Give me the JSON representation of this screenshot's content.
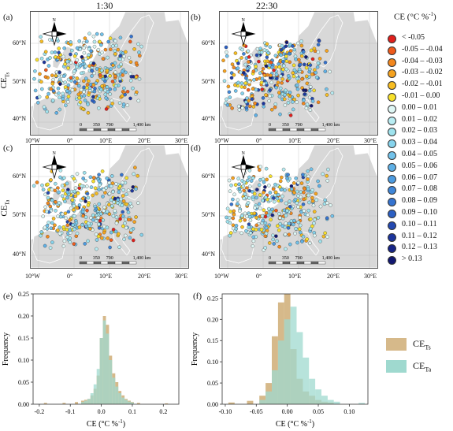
{
  "columns": {
    "left": "1:30",
    "right": "22:30"
  },
  "row_labels": {
    "ts": "CE",
    "ts_sub": "Ts",
    "ta": "CE",
    "ta_sub": "Ta"
  },
  "panel_letters": [
    "(a)",
    "(b)",
    "(c)",
    "(d)",
    "(e)",
    "(f)"
  ],
  "map_axes": {
    "lat_ticks": [
      "60°N",
      "50°N",
      "40°N"
    ],
    "lon_ticks": [
      "10°W",
      "0°",
      "10°E",
      "20°E",
      "30°E"
    ]
  },
  "compass_label": "N",
  "scalebar": {
    "labels": [
      "0",
      "350",
      "700",
      "1,400 km"
    ]
  },
  "legend": {
    "title": "CE (°C %",
    "title_sup": "-1",
    "title_end": ")",
    "items": [
      {
        "label": "< -0.05",
        "color": "#e0201d"
      },
      {
        "label": "-0.05 – -0.04",
        "color": "#ee5a1c"
      },
      {
        "label": "-0.04 – -0.03",
        "color": "#f2871e"
      },
      {
        "label": "-0.03 – -0.02",
        "color": "#f5a21f"
      },
      {
        "label": "-0.02 – -0.01",
        "color": "#f7bd22"
      },
      {
        "label": "-0.01 – 0.00",
        "color": "#f7e02a"
      },
      {
        "label": "0.00 – 0.01",
        "color": "#dff7f5"
      },
      {
        "label": "0.01 – 0.02",
        "color": "#b9edf3"
      },
      {
        "label": "0.02 – 0.03",
        "color": "#9fe3ee"
      },
      {
        "label": "0.03 – 0.04",
        "color": "#86d3ec"
      },
      {
        "label": "0.04 – 0.05",
        "color": "#72c2ea"
      },
      {
        "label": "0.05 – 0.06",
        "color": "#5eb0e6"
      },
      {
        "label": "0.06 – 0.07",
        "color": "#4c9be0"
      },
      {
        "label": "0.07 – 0.08",
        "color": "#3f86d8"
      },
      {
        "label": "0.08 – 0.09",
        "color": "#3573cf"
      },
      {
        "label": "0.09 – 0.10",
        "color": "#2c5fc2"
      },
      {
        "label": "0.10 – 0.11",
        "color": "#2449b0"
      },
      {
        "label": "0.11 – 0.12",
        "color": "#1d359c"
      },
      {
        "label": "0.12 – 0.13",
        "color": "#172587"
      },
      {
        "label": "> 0.13",
        "color": "#121871"
      }
    ]
  },
  "histogram_legend": [
    {
      "label": "CE",
      "sub": "Ts",
      "color": "#d6b98a"
    },
    {
      "label": "CE",
      "sub": "Ta",
      "color": "#9fd9cf"
    }
  ],
  "chart_data": [
    {
      "type": "bar",
      "panel": "(e)",
      "xlabel": "CE (°C %",
      "xlabel_sup": "-1",
      "xlabel_end": ")",
      "ylabel": "Frequency",
      "xlim": [
        -0.22,
        0.25
      ],
      "ylim": [
        0,
        0.25
      ],
      "xticks": [
        "-0.2",
        "-0.1",
        "0.0",
        "0.1",
        "0.2"
      ],
      "xtick_values": [
        -0.2,
        -0.1,
        0.0,
        0.1,
        0.2
      ],
      "yticks": [
        "0.00",
        "0.05",
        "0.10",
        "0.15",
        "0.20",
        "0.25"
      ],
      "ytick_values": [
        0.0,
        0.05,
        0.1,
        0.15,
        0.2,
        0.25
      ],
      "bin_width": 0.01,
      "series": [
        {
          "name": "CE Ts",
          "color": "#d6b98a",
          "x": [
            -0.18,
            -0.12,
            -0.08,
            -0.06,
            -0.05,
            -0.04,
            -0.03,
            -0.02,
            -0.01,
            0.0,
            0.01,
            0.02,
            0.03,
            0.04,
            0.05,
            0.06,
            0.07,
            0.08,
            0.09,
            0.1,
            0.12,
            0.21
          ],
          "values": [
            0.003,
            0.003,
            0.005,
            0.008,
            0.01,
            0.012,
            0.02,
            0.035,
            0.065,
            0.15,
            0.2,
            0.18,
            0.11,
            0.07,
            0.05,
            0.03,
            0.02,
            0.012,
            0.008,
            0.005,
            0.003,
            0.002
          ]
        },
        {
          "name": "CE Ta",
          "color": "#9fd9cf",
          "x": [
            -0.06,
            -0.05,
            -0.04,
            -0.03,
            -0.02,
            -0.01,
            0.0,
            0.01,
            0.02,
            0.03,
            0.04,
            0.05,
            0.06,
            0.07,
            0.08,
            0.09,
            0.1
          ],
          "values": [
            0.005,
            0.008,
            0.012,
            0.025,
            0.045,
            0.08,
            0.15,
            0.19,
            0.16,
            0.1,
            0.06,
            0.04,
            0.025,
            0.015,
            0.01,
            0.006,
            0.004
          ]
        }
      ]
    },
    {
      "type": "bar",
      "panel": "(f)",
      "xlabel": "CE (°C %",
      "xlabel_sup": "-1",
      "xlabel_end": ")",
      "ylabel": "Frequency",
      "xlim": [
        -0.105,
        0.13
      ],
      "ylim": [
        0,
        0.26
      ],
      "xticks": [
        "-0.10",
        "-0.05",
        "0.00",
        "0.05",
        "0.10"
      ],
      "xtick_values": [
        -0.1,
        -0.05,
        0.0,
        0.05,
        0.1
      ],
      "yticks": [
        "0.00",
        "0.05",
        "0.10",
        "0.15",
        "0.20",
        "0.25"
      ],
      "ytick_values": [
        0.0,
        0.05,
        0.1,
        0.15,
        0.2,
        0.25
      ],
      "bin_width": 0.01,
      "series": [
        {
          "name": "CE Ts",
          "color": "#d6b98a",
          "x": [
            -0.09,
            -0.06,
            -0.04,
            -0.03,
            -0.02,
            -0.01,
            0.0,
            0.01,
            0.02,
            0.03,
            0.04,
            0.05,
            0.06,
            0.07
          ],
          "values": [
            0.004,
            0.008,
            0.02,
            0.05,
            0.16,
            0.24,
            0.26,
            0.13,
            0.06,
            0.03,
            0.02,
            0.01,
            0.006,
            0.004
          ]
        },
        {
          "name": "CE Ta",
          "color": "#9fd9cf",
          "x": [
            -0.04,
            -0.03,
            -0.02,
            -0.01,
            0.0,
            0.01,
            0.02,
            0.03,
            0.04,
            0.05,
            0.06,
            0.07,
            0.08,
            0.12
          ],
          "values": [
            0.01,
            0.03,
            0.08,
            0.15,
            0.2,
            0.23,
            0.17,
            0.11,
            0.06,
            0.035,
            0.02,
            0.01,
            0.006,
            0.003
          ]
        }
      ]
    }
  ]
}
